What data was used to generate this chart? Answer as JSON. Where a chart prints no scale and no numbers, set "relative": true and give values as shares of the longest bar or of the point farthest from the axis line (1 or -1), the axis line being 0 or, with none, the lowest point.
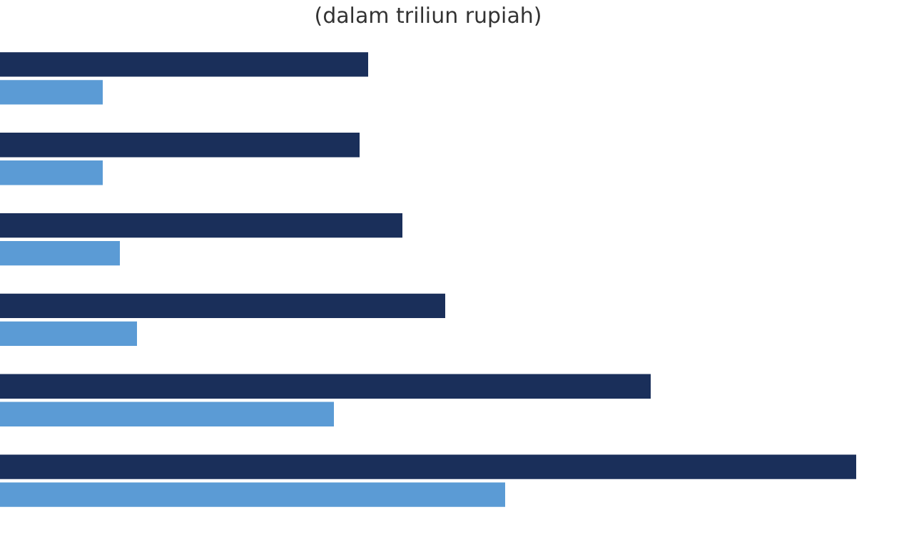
{
  "chart_data": {
    "type": "bar",
    "orientation": "horizontal",
    "relative": true,
    "title": "(dalam triliun rupiah)",
    "categories": [
      null,
      null,
      null,
      null,
      null,
      null
    ],
    "series": [
      {
        "color": "#1a2f5a",
        "values": [
          0.43,
          0.42,
          0.47,
          0.52,
          0.76,
          1
        ]
      },
      {
        "color": "#5b9bd5",
        "values": [
          0.12,
          0.12,
          0.14,
          0.16,
          0.39,
          0.59
        ]
      }
    ]
  }
}
